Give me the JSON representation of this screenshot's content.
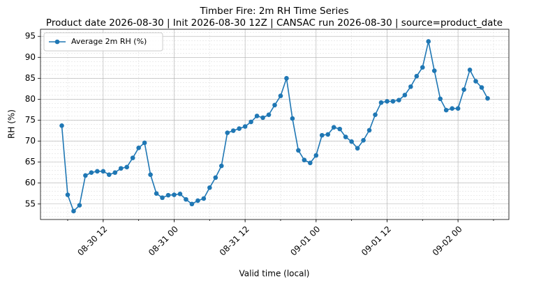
{
  "chart_data": {
    "type": "line",
    "title": "Timber Fire: 2m RH Time Series",
    "subtitle": "Product date 2026-08-30 | Init 2026-08-30 12Z | CANSAC run 2026-08-30 | source=product_date",
    "x_label": "Valid time (local)",
    "y_label": "RH (%)",
    "x": [
      "08-30 05",
      "08-30 06",
      "08-30 07",
      "08-30 08",
      "08-30 09",
      "08-30 10",
      "08-30 11",
      "08-30 12",
      "08-30 13",
      "08-30 14",
      "08-30 15",
      "08-30 16",
      "08-30 17",
      "08-30 18",
      "08-30 19",
      "08-30 20",
      "08-30 21",
      "08-30 22",
      "08-30 23",
      "08-31 00",
      "08-31 01",
      "08-31 02",
      "08-31 03",
      "08-31 04",
      "08-31 05",
      "08-31 06",
      "08-31 07",
      "08-31 08",
      "08-31 09",
      "08-31 10",
      "08-31 11",
      "08-31 12",
      "08-31 13",
      "08-31 14",
      "08-31 15",
      "08-31 16",
      "08-31 17",
      "08-31 18",
      "08-31 19",
      "08-31 20",
      "08-31 21",
      "08-31 22",
      "08-31 23",
      "09-01 00",
      "09-01 01",
      "09-01 02",
      "09-01 03",
      "09-01 04",
      "09-01 05",
      "09-01 06",
      "09-01 07",
      "09-01 08",
      "09-01 09",
      "09-01 10",
      "09-01 11",
      "09-01 12",
      "09-01 13",
      "09-01 14",
      "09-01 15",
      "09-01 16",
      "09-01 17",
      "09-01 18",
      "09-01 19",
      "09-01 20",
      "09-01 21",
      "09-01 22",
      "09-01 23",
      "09-02 00",
      "09-02 01",
      "09-02 02",
      "09-02 03",
      "09-02 04",
      "09-02 05"
    ],
    "series": [
      {
        "name": "Average 2m RH (%)",
        "color": "#1f77b4",
        "values": [
          73.7,
          57.2,
          53.3,
          54.7,
          61.8,
          62.5,
          62.8,
          62.8,
          62.0,
          62.5,
          63.5,
          63.8,
          66.0,
          68.4,
          69.6,
          62.0,
          57.5,
          56.5,
          57.1,
          57.2,
          57.4,
          56.1,
          55.0,
          55.8,
          56.3,
          58.9,
          61.3,
          64.1,
          72.0,
          72.5,
          73.0,
          73.5,
          74.6,
          76.0,
          75.6,
          76.3,
          78.6,
          80.8,
          85.0,
          75.4,
          67.8,
          65.5,
          64.8,
          66.6,
          71.4,
          71.6,
          73.3,
          72.9,
          71.0,
          69.9,
          68.3,
          70.2,
          72.6,
          76.3,
          79.2,
          79.5,
          79.5,
          79.8,
          81.0,
          83.0,
          85.5,
          87.6,
          93.8,
          86.8,
          80.1,
          77.4,
          77.8,
          77.8,
          82.3,
          87.0,
          84.3,
          82.8,
          80.2
        ]
      }
    ],
    "xticks": [
      "08-30 12",
      "08-31 00",
      "08-31 12",
      "09-01 00",
      "09-01 12",
      "09-02 00"
    ],
    "ylim": [
      51.3,
      96.7
    ],
    "yticks": [
      55,
      60,
      65,
      70,
      75,
      80,
      85,
      90,
      95
    ],
    "grid": true,
    "legend": "upper left"
  }
}
